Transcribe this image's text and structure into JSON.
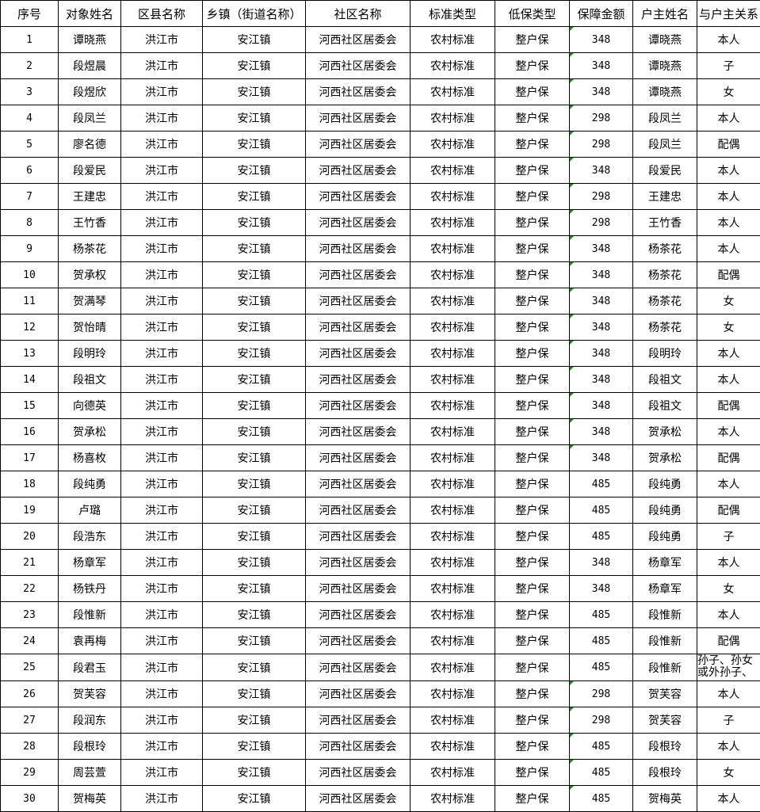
{
  "headers": [
    "序号",
    "对象姓名",
    "区县名称",
    "乡镇（街道名称）",
    "社区名称",
    "标准类型",
    "低保类型",
    "保障金额",
    "户主姓名",
    "与户主关系"
  ],
  "rows": [
    [
      "1",
      "谭晓燕",
      "洪江市",
      "安江镇",
      "河西社区居委会",
      "农村标准",
      "整户保",
      "348",
      "谭晓燕",
      "本人"
    ],
    [
      "2",
      "段煜晨",
      "洪江市",
      "安江镇",
      "河西社区居委会",
      "农村标准",
      "整户保",
      "348",
      "谭晓燕",
      "子"
    ],
    [
      "3",
      "段煜欣",
      "洪江市",
      "安江镇",
      "河西社区居委会",
      "农村标准",
      "整户保",
      "348",
      "谭晓燕",
      "女"
    ],
    [
      "4",
      "段凤兰",
      "洪江市",
      "安江镇",
      "河西社区居委会",
      "农村标准",
      "整户保",
      "298",
      "段凤兰",
      "本人"
    ],
    [
      "5",
      "廖名德",
      "洪江市",
      "安江镇",
      "河西社区居委会",
      "农村标准",
      "整户保",
      "298",
      "段凤兰",
      "配偶"
    ],
    [
      "6",
      "段爱民",
      "洪江市",
      "安江镇",
      "河西社区居委会",
      "农村标准",
      "整户保",
      "348",
      "段爱民",
      "本人"
    ],
    [
      "7",
      "王建忠",
      "洪江市",
      "安江镇",
      "河西社区居委会",
      "农村标准",
      "整户保",
      "298",
      "王建忠",
      "本人"
    ],
    [
      "8",
      "王竹香",
      "洪江市",
      "安江镇",
      "河西社区居委会",
      "农村标准",
      "整户保",
      "298",
      "王竹香",
      "本人"
    ],
    [
      "9",
      "杨茶花",
      "洪江市",
      "安江镇",
      "河西社区居委会",
      "农村标准",
      "整户保",
      "348",
      "杨茶花",
      "本人"
    ],
    [
      "10",
      "贺承权",
      "洪江市",
      "安江镇",
      "河西社区居委会",
      "农村标准",
      "整户保",
      "348",
      "杨茶花",
      "配偶"
    ],
    [
      "11",
      "贺满琴",
      "洪江市",
      "安江镇",
      "河西社区居委会",
      "农村标准",
      "整户保",
      "348",
      "杨茶花",
      "女"
    ],
    [
      "12",
      "贺怡晴",
      "洪江市",
      "安江镇",
      "河西社区居委会",
      "农村标准",
      "整户保",
      "348",
      "杨茶花",
      "女"
    ],
    [
      "13",
      "段明玲",
      "洪江市",
      "安江镇",
      "河西社区居委会",
      "农村标准",
      "整户保",
      "348",
      "段明玲",
      "本人"
    ],
    [
      "14",
      "段祖文",
      "洪江市",
      "安江镇",
      "河西社区居委会",
      "农村标准",
      "整户保",
      "348",
      "段祖文",
      "本人"
    ],
    [
      "15",
      "向德英",
      "洪江市",
      "安江镇",
      "河西社区居委会",
      "农村标准",
      "整户保",
      "348",
      "段祖文",
      "配偶"
    ],
    [
      "16",
      "贺承松",
      "洪江市",
      "安江镇",
      "河西社区居委会",
      "农村标准",
      "整户保",
      "348",
      "贺承松",
      "本人"
    ],
    [
      "17",
      "杨喜枚",
      "洪江市",
      "安江镇",
      "河西社区居委会",
      "农村标准",
      "整户保",
      "348",
      "贺承松",
      "配偶"
    ],
    [
      "18",
      "段纯勇",
      "洪江市",
      "安江镇",
      "河西社区居委会",
      "农村标准",
      "整户保",
      "485",
      "段纯勇",
      "本人"
    ],
    [
      "19",
      "卢璐",
      "洪江市",
      "安江镇",
      "河西社区居委会",
      "农村标准",
      "整户保",
      "485",
      "段纯勇",
      "配偶"
    ],
    [
      "20",
      "段浩东",
      "洪江市",
      "安江镇",
      "河西社区居委会",
      "农村标准",
      "整户保",
      "485",
      "段纯勇",
      "子"
    ],
    [
      "21",
      "杨章军",
      "洪江市",
      "安江镇",
      "河西社区居委会",
      "农村标准",
      "整户保",
      "348",
      "杨章军",
      "本人"
    ],
    [
      "22",
      "杨铁丹",
      "洪江市",
      "安江镇",
      "河西社区居委会",
      "农村标准",
      "整户保",
      "348",
      "杨章军",
      "女"
    ],
    [
      "23",
      "段惟新",
      "洪江市",
      "安江镇",
      "河西社区居委会",
      "农村标准",
      "整户保",
      "485",
      "段惟新",
      "本人"
    ],
    [
      "24",
      "袁再梅",
      "洪江市",
      "安江镇",
      "河西社区居委会",
      "农村标准",
      "整户保",
      "485",
      "段惟新",
      "配偶"
    ],
    [
      "25",
      "段君玉",
      "洪江市",
      "安江镇",
      "河西社区居委会",
      "农村标准",
      "整户保",
      "485",
      "段惟新",
      "孙子、孙女或外孙子、"
    ],
    [
      "26",
      "贺芙容",
      "洪江市",
      "安江镇",
      "河西社区居委会",
      "农村标准",
      "整户保",
      "298",
      "贺芙容",
      "本人"
    ],
    [
      "27",
      "段润东",
      "洪江市",
      "安江镇",
      "河西社区居委会",
      "农村标准",
      "整户保",
      "298",
      "贺芙容",
      "子"
    ],
    [
      "28",
      "段根玲",
      "洪江市",
      "安江镇",
      "河西社区居委会",
      "农村标准",
      "整户保",
      "485",
      "段根玲",
      "本人"
    ],
    [
      "29",
      "周芸萱",
      "洪江市",
      "安江镇",
      "河西社区居委会",
      "农村标准",
      "整户保",
      "485",
      "段根玲",
      "女"
    ],
    [
      "30",
      "贺梅英",
      "洪江市",
      "安江镇",
      "河西社区居委会",
      "农村标准",
      "整户保",
      "485",
      "贺梅英",
      "本人"
    ]
  ],
  "number_stored_as_text_rows": [
    1,
    2,
    3,
    4,
    5,
    6,
    7,
    8,
    9,
    10,
    11,
    12,
    13,
    14,
    15,
    16,
    17,
    26,
    27,
    28,
    29,
    30
  ],
  "indicator_color": "#1e8a1e"
}
